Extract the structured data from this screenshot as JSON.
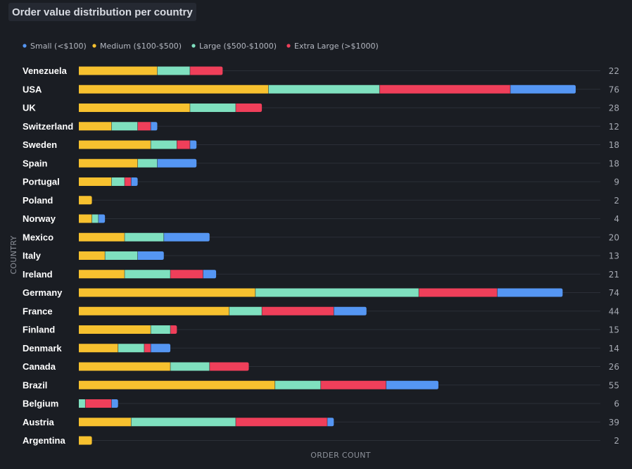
{
  "title": "Order value distribution per country",
  "chart_data": {
    "type": "bar",
    "orientation": "horizontal",
    "stacked": true,
    "title": "Order value distribution per country",
    "xlabel": "ORDER COUNT",
    "ylabel": "COUNTRY",
    "xlim": [
      0,
      76
    ],
    "legend_position": "top-left",
    "grid": "horizontal",
    "categories": [
      "Venezuela",
      "USA",
      "UK",
      "Switzerland",
      "Sweden",
      "Spain",
      "Portugal",
      "Poland",
      "Norway",
      "Mexico",
      "Italy",
      "Ireland",
      "Germany",
      "France",
      "Finland",
      "Denmark",
      "Canada",
      "Brazil",
      "Belgium",
      "Austria",
      "Argentina"
    ],
    "totals": [
      22,
      76,
      28,
      12,
      18,
      18,
      9,
      2,
      4,
      20,
      13,
      21,
      74,
      44,
      15,
      14,
      26,
      55,
      6,
      39,
      2
    ],
    "series": [
      {
        "name": "Medium ($100-$500)",
        "color": "#f7c12f",
        "values": [
          12,
          29,
          17,
          5,
          11,
          9,
          5,
          2,
          2,
          7,
          4,
          7,
          27,
          23,
          11,
          6,
          14,
          30,
          0,
          8,
          2
        ]
      },
      {
        "name": "Large ($500-$1000)",
        "color": "#7fe0bf",
        "values": [
          5,
          17,
          7,
          4,
          4,
          3,
          2,
          0,
          1,
          6,
          5,
          7,
          25,
          5,
          3,
          4,
          6,
          7,
          1,
          16,
          0
        ]
      },
      {
        "name": "Extra Large (>$1000)",
        "color": "#ef3f5a",
        "values": [
          5,
          20,
          4,
          2,
          2,
          0,
          1,
          0,
          0,
          0,
          0,
          5,
          12,
          11,
          1,
          1,
          6,
          10,
          4,
          14,
          0
        ]
      },
      {
        "name": "Small (<$100)",
        "color": "#5596f3",
        "values": [
          0,
          10,
          0,
          1,
          1,
          6,
          1,
          0,
          1,
          7,
          4,
          2,
          10,
          5,
          0,
          3,
          0,
          8,
          1,
          1,
          0
        ]
      }
    ],
    "legend": [
      {
        "name": "Small (<$100)",
        "color": "#5596f3"
      },
      {
        "name": "Medium ($100-$500)",
        "color": "#f7c12f"
      },
      {
        "name": "Large ($500-$1000)",
        "color": "#7fe0bf"
      },
      {
        "name": "Extra Large (>$1000)",
        "color": "#ef3f5a"
      }
    ]
  }
}
